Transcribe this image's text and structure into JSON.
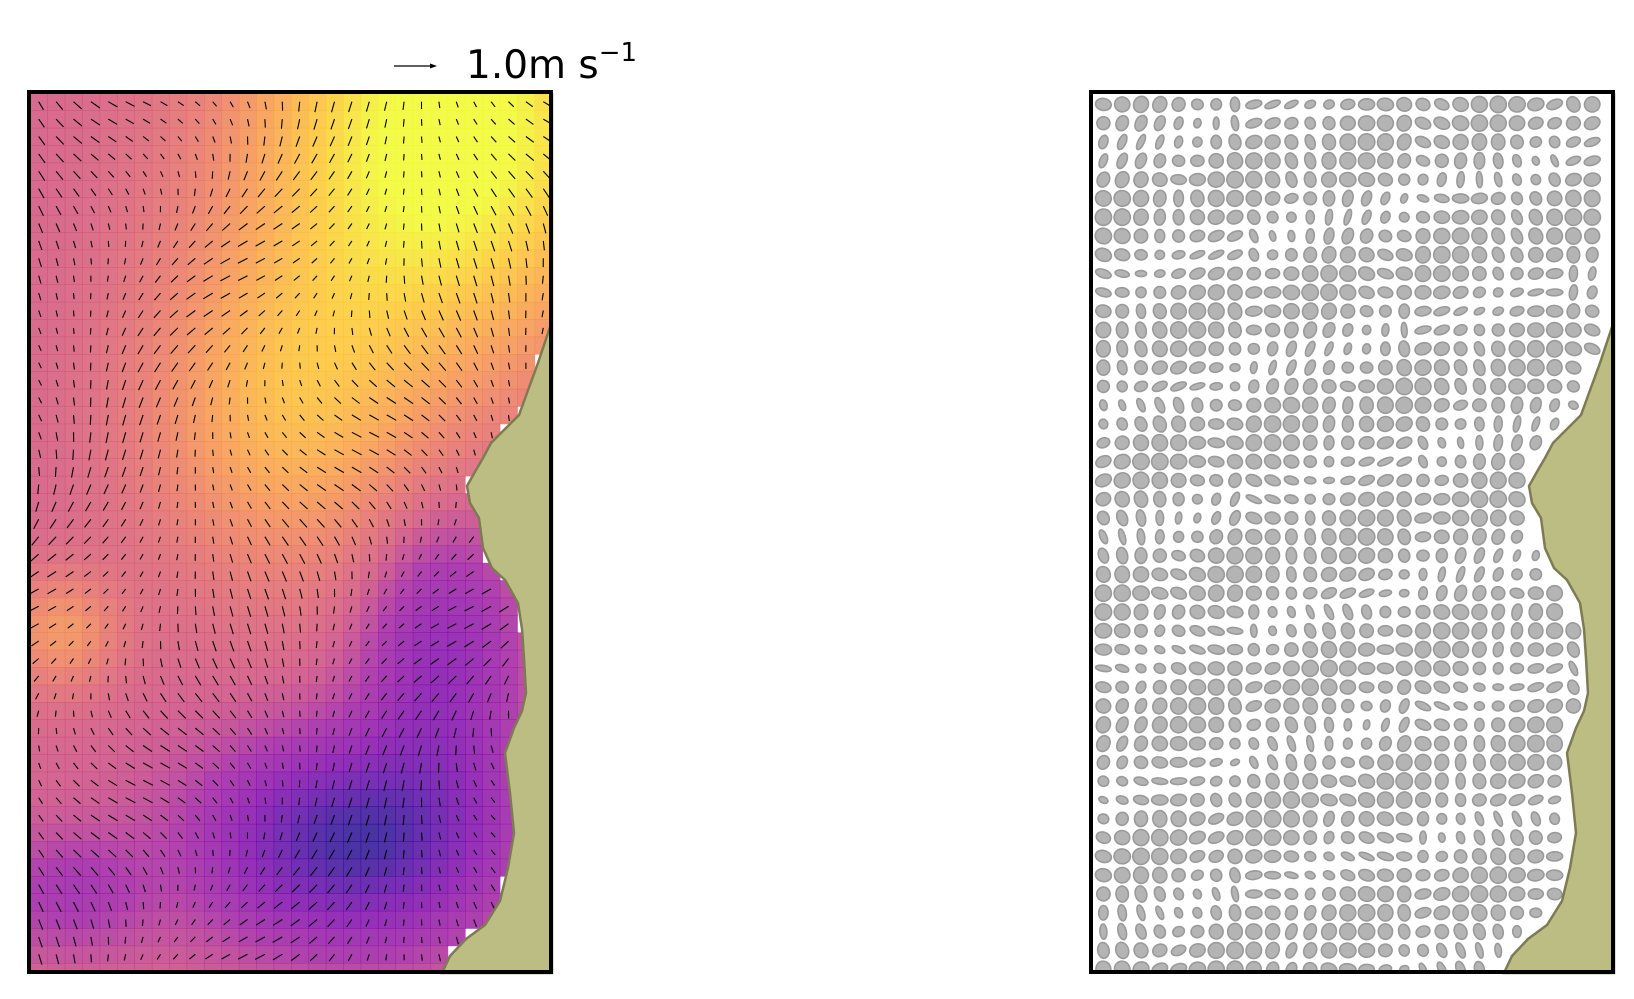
{
  "chart_data": [
    {
      "type": "quiver",
      "description_type": "velocity field over colored speed map",
      "quiver_key": {
        "magnitude": 1.0,
        "unit_base": "1.0m s",
        "unit_exponent": "−1"
      },
      "background_colormap": "plasma",
      "land_color": "#bcbd82",
      "land_edge_color": "#7c7c50",
      "arrow_color": "#000000",
      "axes_visible": false,
      "grid": false
    },
    {
      "type": "ellipse-field",
      "ellipse_fill": "#b4b4b4",
      "ellipse_edge": "#9a9a9a",
      "land_color": "#bcbd82",
      "land_edge_color": "#7c7c50",
      "axes_visible": false,
      "grid": false
    }
  ]
}
